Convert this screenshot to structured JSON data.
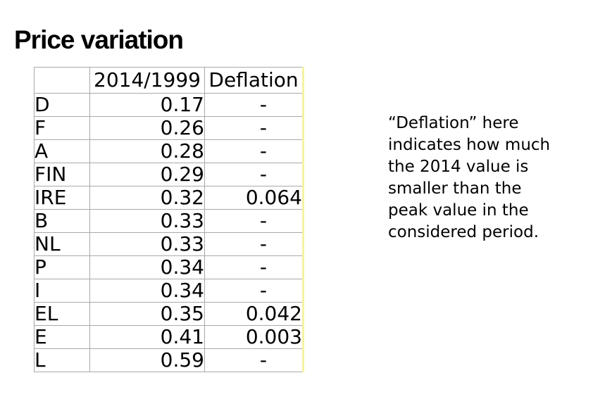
{
  "title": "Price variation",
  "table": {
    "headers": [
      "",
      "2014/1999",
      "Deflation"
    ],
    "rows": [
      {
        "label": "D",
        "ratio": "0.17",
        "deflation": "-"
      },
      {
        "label": "F",
        "ratio": "0.26",
        "deflation": "-"
      },
      {
        "label": "A",
        "ratio": "0.28",
        "deflation": "-"
      },
      {
        "label": "FIN",
        "ratio": "0.29",
        "deflation": "-"
      },
      {
        "label": "IRE",
        "ratio": "0.32",
        "deflation": "0.064"
      },
      {
        "label": "B",
        "ratio": "0.33",
        "deflation": "-"
      },
      {
        "label": "NL",
        "ratio": "0.33",
        "deflation": "-"
      },
      {
        "label": "P",
        "ratio": "0.34",
        "deflation": "-"
      },
      {
        "label": "I",
        "ratio": "0.34",
        "deflation": "-"
      },
      {
        "label": "EL",
        "ratio": "0.35",
        "deflation": "0.042"
      },
      {
        "label": "E",
        "ratio": "0.41",
        "deflation": "0.003"
      },
      {
        "label": "L",
        "ratio": "0.59",
        "deflation": "-"
      }
    ]
  },
  "annotation": {
    "text": "“Deflation” here indicates how much the 2014 value is smaller than the peak value in the considered period.",
    "lines": [
      "“Deflation” here",
      "indicates how much",
      "the 2014 value is",
      "smaller than the",
      "peak value in the",
      "considered period."
    ]
  },
  "colors": {
    "background": "#ffffff",
    "text": "#000000",
    "grid_gray": "#a9a9a9",
    "accent_yellow_border": "#f5f3a1"
  }
}
